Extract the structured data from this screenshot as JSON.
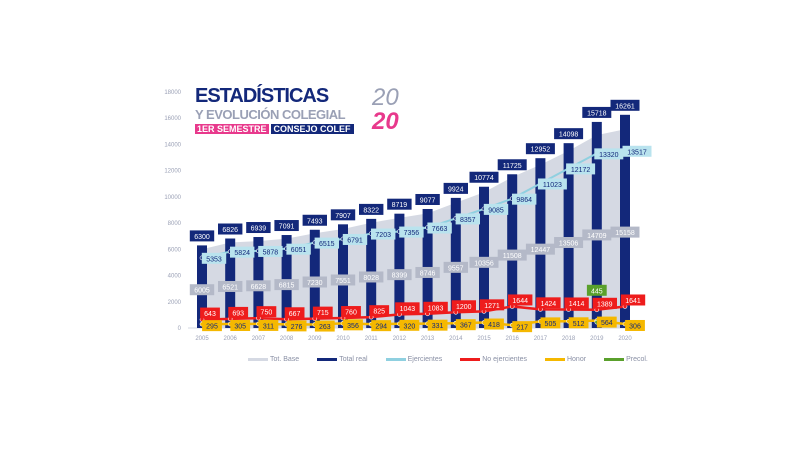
{
  "title": {
    "line1": "ESTADÍSTICAS",
    "line2": "Y EVOLUCIÓN COLEGIAL",
    "tag1": "1ER SEMESTRE",
    "tag2": "CONSEJO COLEF",
    "year_top": "20",
    "year_bottom": "20"
  },
  "chart_data": {
    "type": "bar",
    "x": [
      "2005",
      "2006",
      "2007",
      "2008",
      "2009",
      "2010",
      "2011",
      "2012",
      "2013",
      "2014",
      "2015",
      "2016",
      "2017",
      "2018",
      "2019",
      "2020"
    ],
    "ylim": [
      0,
      18000
    ],
    "yticks": [
      "0",
      "2000",
      "4000",
      "6000",
      "8000",
      "10000",
      "12000",
      "14000",
      "16000",
      "18000"
    ],
    "series": [
      {
        "name": "Tot. Base",
        "type": "area",
        "color": "#d5d9e3",
        "values": [
          6005,
          6521,
          6628,
          6815,
          7230,
          7551,
          8028,
          8399,
          8746,
          9557,
          10356,
          11508,
          12447,
          13506,
          14709,
          15158
        ]
      },
      {
        "name": "Total real",
        "type": "bar",
        "color": "#13287a",
        "values": [
          6300,
          6826,
          6939,
          7091,
          7493,
          7907,
          8322,
          8719,
          9077,
          9924,
          10774,
          11725,
          12952,
          14098,
          15718,
          16261
        ]
      },
      {
        "name": "Ejercientes",
        "type": "line",
        "color": "#8fd0e0",
        "values": [
          5353,
          5824,
          5878,
          6051,
          6515,
          6791,
          7203,
          7356,
          7663,
          8357,
          9085,
          9864,
          11023,
          12172,
          13320,
          13517
        ]
      },
      {
        "name": "No ejercientes",
        "type": "line",
        "color": "#ee1c1c",
        "values": [
          643,
          693,
          750,
          667,
          715,
          760,
          825,
          1043,
          1083,
          1200,
          1271,
          1644,
          1424,
          1414,
          1389,
          1641
        ]
      },
      {
        "name": "Honor",
        "type": "line",
        "color": "#f5b800",
        "values": [
          295,
          305,
          311,
          276,
          263,
          356,
          294,
          320,
          331,
          367,
          418,
          217,
          505,
          512,
          564,
          306
        ]
      },
      {
        "name": "Precol.",
        "type": "line",
        "color": "#5aa02c",
        "values": [
          null,
          null,
          null,
          null,
          null,
          null,
          null,
          null,
          null,
          null,
          null,
          null,
          null,
          null,
          445,
          null
        ]
      }
    ],
    "legend_position": "bottom"
  }
}
